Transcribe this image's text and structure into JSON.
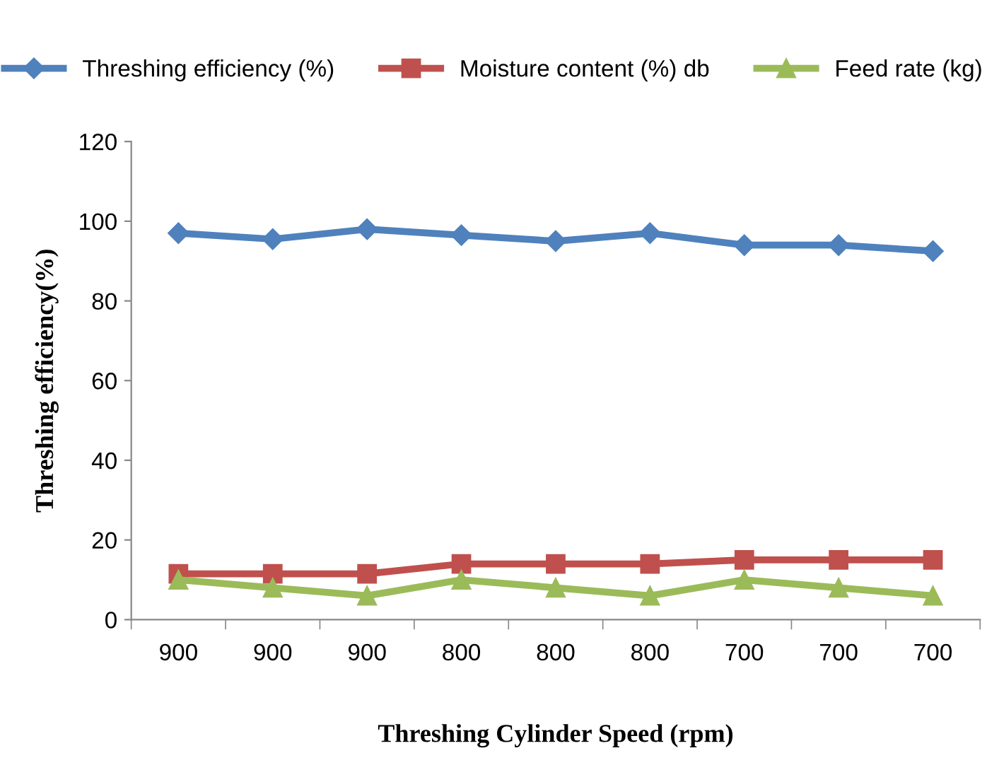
{
  "chart_data": {
    "type": "line",
    "xlabel": "Threshing Cylinder Speed (rpm)",
    "ylabel": "Threshing efficiency(%)",
    "categories": [
      "900",
      "900",
      "900",
      "800",
      "800",
      "800",
      "700",
      "700",
      "700"
    ],
    "series": [
      {
        "name": "Threshing efficiency (%)",
        "color": "#4f81bd",
        "marker": "diamond",
        "values": [
          97,
          95.5,
          98,
          96.5,
          95,
          97,
          94,
          94,
          92.5
        ]
      },
      {
        "name": "Moisture content (%) db",
        "color": "#c0504d",
        "marker": "square",
        "values": [
          11.5,
          11.5,
          11.5,
          14,
          14,
          14,
          15,
          15,
          15
        ]
      },
      {
        "name": "Feed rate (kg)",
        "color": "#9bbb59",
        "marker": "triangle",
        "values": [
          10,
          8,
          6,
          10,
          8,
          6,
          10,
          8,
          6
        ]
      }
    ],
    "ylim": [
      0,
      120
    ],
    "yticks": [
      0,
      20,
      40,
      60,
      80,
      100,
      120
    ],
    "grid": false,
    "legend": "top"
  }
}
